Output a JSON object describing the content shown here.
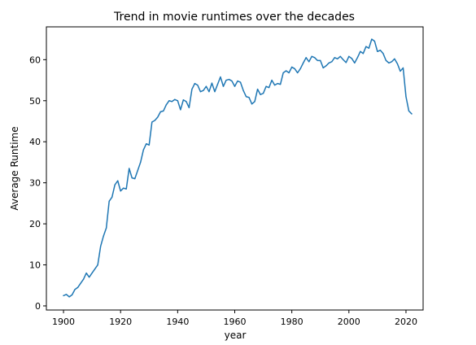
{
  "chart_data": {
    "type": "line",
    "title": "Trend in movie runtimes over the decades",
    "xlabel": "year",
    "ylabel": "Average Runtime",
    "xlim": [
      1894,
      2026
    ],
    "ylim": [
      -1,
      68
    ],
    "xticks": [
      1900,
      1920,
      1940,
      1960,
      1980,
      2000,
      2020
    ],
    "yticks": [
      0,
      10,
      20,
      30,
      40,
      50,
      60
    ],
    "grid": false,
    "legend": "none",
    "line_color": "#1f77b4",
    "series": [
      {
        "x": [
          1900,
          1901,
          1902,
          1903,
          1904,
          1905,
          1906,
          1907,
          1908,
          1909,
          1910,
          1911,
          1912,
          1913,
          1914,
          1915,
          1916,
          1917,
          1918,
          1919,
          1920,
          1921,
          1922,
          1923,
          1924,
          1925,
          1926,
          1927,
          1928,
          1929,
          1930,
          1931,
          1932,
          1933,
          1934,
          1935,
          1936,
          1937,
          1938,
          1939,
          1940,
          1941,
          1942,
          1943,
          1944,
          1945,
          1946,
          1947,
          1948,
          1949,
          1950,
          1951,
          1952,
          1953,
          1954,
          1955,
          1956,
          1957,
          1958,
          1959,
          1960,
          1961,
          1962,
          1963,
          1964,
          1965,
          1966,
          1967,
          1968,
          1969,
          1970,
          1971,
          1972,
          1973,
          1974,
          1975,
          1976,
          1977,
          1978,
          1979,
          1980,
          1981,
          1982,
          1983,
          1984,
          1985,
          1986,
          1987,
          1988,
          1989,
          1990,
          1991,
          1992,
          1993,
          1994,
          1995,
          1996,
          1997,
          1998,
          1999,
          2000,
          2001,
          2002,
          2003,
          2004,
          2005,
          2006,
          2007,
          2008,
          2009,
          2010,
          2011,
          2012,
          2013,
          2014,
          2015,
          2016,
          2017,
          2018,
          2019,
          2020,
          2021,
          2022
        ],
        "y": [
          2.5,
          2.8,
          2.2,
          2.7,
          4.0,
          4.5,
          5.5,
          6.5,
          8.0,
          7.0,
          8.0,
          9.0,
          10.0,
          14.5,
          17.0,
          19.0,
          25.5,
          26.5,
          29.5,
          30.5,
          28.0,
          28.7,
          28.5,
          33.5,
          31.2,
          31.0,
          33.0,
          35.0,
          38.0,
          39.5,
          39.2,
          44.8,
          45.2,
          46.0,
          47.3,
          47.5,
          49.0,
          50.0,
          49.8,
          50.3,
          50.0,
          47.8,
          50.2,
          49.8,
          48.3,
          52.8,
          54.2,
          53.8,
          52.2,
          52.5,
          53.5,
          52.2,
          54.3,
          52.2,
          54.0,
          55.8,
          53.5,
          55.0,
          55.2,
          54.8,
          53.5,
          54.8,
          54.5,
          52.5,
          51.0,
          50.8,
          49.2,
          49.8,
          52.8,
          51.5,
          51.8,
          53.5,
          53.2,
          55.0,
          53.8,
          54.2,
          54.0,
          56.8,
          57.3,
          56.8,
          58.2,
          57.8,
          56.8,
          57.8,
          59.2,
          60.5,
          59.5,
          60.8,
          60.5,
          59.8,
          59.8,
          58.0,
          58.5,
          59.2,
          59.5,
          60.5,
          60.2,
          60.8,
          60.0,
          59.3,
          60.8,
          60.3,
          59.2,
          60.5,
          62.0,
          61.5,
          63.2,
          62.8,
          65.0,
          64.5,
          62.0,
          62.3,
          61.5,
          59.8,
          59.2,
          59.5,
          60.2,
          59.0,
          57.2,
          58.0,
          51.0,
          47.5,
          46.8
        ]
      }
    ]
  }
}
